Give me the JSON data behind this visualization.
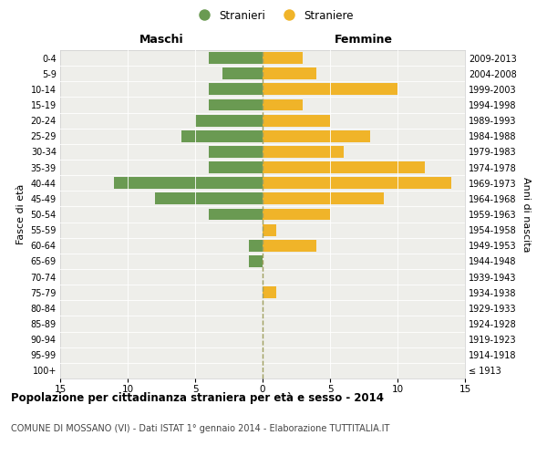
{
  "age_groups": [
    "0-4",
    "5-9",
    "10-14",
    "15-19",
    "20-24",
    "25-29",
    "30-34",
    "35-39",
    "40-44",
    "45-49",
    "50-54",
    "55-59",
    "60-64",
    "65-69",
    "70-74",
    "75-79",
    "80-84",
    "85-89",
    "90-94",
    "95-99",
    "100+"
  ],
  "birth_years": [
    "2009-2013",
    "2004-2008",
    "1999-2003",
    "1994-1998",
    "1989-1993",
    "1984-1988",
    "1979-1983",
    "1974-1978",
    "1969-1973",
    "1964-1968",
    "1959-1963",
    "1954-1958",
    "1949-1953",
    "1944-1948",
    "1939-1943",
    "1934-1938",
    "1929-1933",
    "1924-1928",
    "1919-1923",
    "1914-1918",
    "≤ 1913"
  ],
  "males": [
    4,
    3,
    4,
    4,
    5,
    6,
    4,
    4,
    11,
    8,
    4,
    0,
    1,
    1,
    0,
    0,
    0,
    0,
    0,
    0,
    0
  ],
  "females": [
    3,
    4,
    10,
    3,
    5,
    8,
    6,
    12,
    14,
    9,
    5,
    1,
    4,
    0,
    0,
    1,
    0,
    0,
    0,
    0,
    0
  ],
  "male_color": "#6a9a52",
  "female_color": "#f0b429",
  "xlim": 15,
  "title": "Popolazione per cittadinanza straniera per età e sesso - 2014",
  "subtitle": "COMUNE DI MOSSANO (VI) - Dati ISTAT 1° gennaio 2014 - Elaborazione TUTTITALIA.IT",
  "legend_male": "Stranieri",
  "legend_female": "Straniere",
  "label_left": "Maschi",
  "label_right": "Femmine",
  "ylabel_left": "Fasce di età",
  "ylabel_right": "Anni di nascita",
  "bg_color": "#eeeeea",
  "bar_height": 0.75,
  "xticks": [
    -15,
    -10,
    -5,
    0,
    5,
    10,
    15
  ]
}
